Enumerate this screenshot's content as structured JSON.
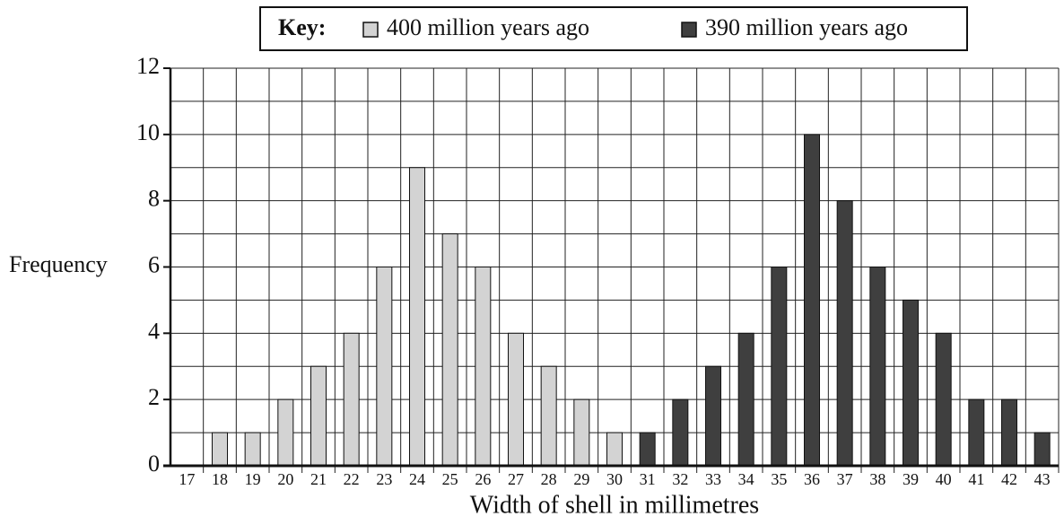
{
  "chart_data": {
    "type": "bar",
    "legend_title": "Key:",
    "x_label": "Width of shell in millimetres",
    "y_label": "Frequency",
    "categories": [
      "17",
      "18",
      "19",
      "20",
      "21",
      "22",
      "23",
      "24",
      "25",
      "26",
      "27",
      "28",
      "29",
      "30",
      "31",
      "32",
      "33",
      "34",
      "35",
      "36",
      "37",
      "38",
      "39",
      "40",
      "41",
      "42",
      "43"
    ],
    "series": [
      {
        "name": "400 million years ago",
        "color": "#d3d3d3",
        "values": [
          null,
          1,
          1,
          2,
          3,
          4,
          6,
          9,
          7,
          6,
          4,
          3,
          2,
          1,
          null,
          null,
          null,
          null,
          null,
          null,
          null,
          null,
          null,
          null,
          null,
          null,
          null
        ]
      },
      {
        "name": "390 million years ago",
        "color": "#3f3f3f",
        "values": [
          null,
          null,
          null,
          null,
          null,
          null,
          null,
          null,
          null,
          null,
          null,
          null,
          null,
          null,
          1,
          2,
          3,
          4,
          6,
          10,
          8,
          6,
          5,
          4,
          2,
          2,
          1
        ]
      }
    ],
    "ylim": [
      0,
      12
    ],
    "yticks": [
      0,
      2,
      4,
      6,
      8,
      10,
      12
    ],
    "ygrid": [
      1,
      2,
      3,
      4,
      5,
      6,
      7,
      8,
      9,
      10,
      11,
      12
    ],
    "grid": true,
    "legend": "top"
  }
}
